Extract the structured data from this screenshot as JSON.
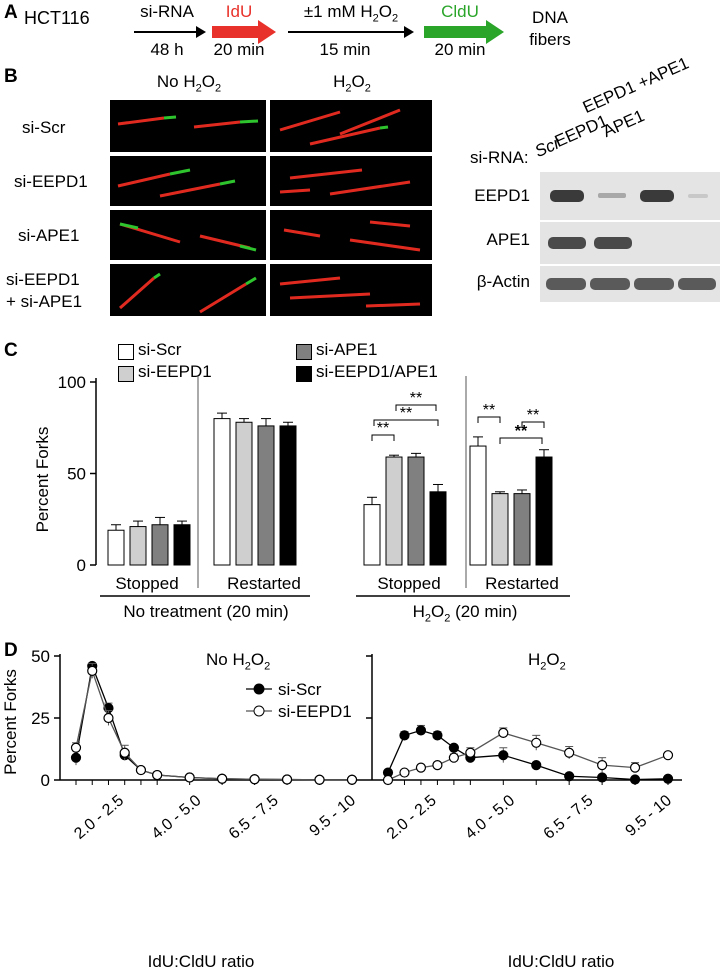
{
  "panel_a": {
    "label": "A",
    "cell_line": "HCT116",
    "steps": [
      {
        "above": "si-RNA",
        "below": "48 h",
        "color": "#000000"
      },
      {
        "above": "IdU",
        "below": "20 min",
        "color": "#e8312a"
      },
      {
        "above": "±1 mM H",
        "above_sub": "2",
        "above_tail": "O",
        "above_sub2": "2",
        "below": "15 min",
        "color": "#000000"
      },
      {
        "above": "CldU",
        "below": "20 min",
        "color": "#2aa52a"
      }
    ],
    "end_line1": "DNA",
    "end_line2": "fibers"
  },
  "panel_b": {
    "label": "B",
    "col_no": "No  H",
    "col_no_sub": "2",
    "col_no_tail": "O",
    "col_no_sub2": "2",
    "col_h": "H",
    "col_h_sub": "2",
    "col_h_tail": "O",
    "col_h_sub2": "2",
    "rows": [
      "si-Scr",
      "si-EEPD1",
      "si-APE1",
      "si-EEPD1",
      "+ si-APE1"
    ],
    "blot": {
      "sirna_label": "si-RNA:",
      "lanes": [
        "Scr",
        "EEPD1",
        "APE1",
        "EEPD1 +APE1"
      ],
      "bands": [
        "EEPD1",
        "APE1",
        "β-Actin"
      ]
    }
  },
  "panel_c": {
    "label": "C",
    "ylabel": "Percent Forks",
    "legend": [
      "si-Scr",
      "si-EEPD1",
      "si-APE1",
      "si-EEPD1/APE1"
    ],
    "group_labels": [
      "Stopped",
      "Restarted",
      "Stopped",
      "Restarted"
    ],
    "treatment_1": "No treatment (20 min)",
    "treatment_2_pre": "H",
    "treatment_2_sub": "2",
    "treatment_2_mid": "O",
    "treatment_2_sub2": "2",
    "treatment_2_tail": " (20 min)",
    "sig": "**"
  },
  "panel_d": {
    "label": "D",
    "ylabel": "Percent Forks",
    "xlabel": "IdU:CldU ratio",
    "title_left_pre": "No  H",
    "title_left_sub": "2",
    "title_left_mid": "O",
    "title_left_sub2": "2",
    "title_right_pre": "H",
    "title_right_sub": "2",
    "title_right_mid": "O",
    "title_right_sub2": "2",
    "legend": [
      "si-Scr",
      "si-EEPD1"
    ]
  },
  "chart_data": [
    {
      "type": "bar",
      "panel": "C",
      "ylabel": "Percent Forks",
      "ylim": [
        0,
        100
      ],
      "yticks": [
        0,
        50,
        100
      ],
      "categories": [
        "No treatment Stopped",
        "No treatment Restarted",
        "H2O2 Stopped",
        "H2O2 Restarted"
      ],
      "series": [
        {
          "name": "si-Scr",
          "color": "#ffffff",
          "values": [
            19,
            80,
            33,
            65
          ],
          "errors": [
            3,
            3,
            4,
            5
          ]
        },
        {
          "name": "si-EEPD1",
          "color": "#cfcfcf",
          "values": [
            21,
            78,
            59,
            39
          ],
          "errors": [
            3,
            2,
            1,
            1
          ]
        },
        {
          "name": "si-APE1",
          "color": "#808080",
          "values": [
            22,
            76,
            59,
            39
          ],
          "errors": [
            4,
            4,
            2,
            2
          ]
        },
        {
          "name": "si-EEPD1/APE1",
          "color": "#000000",
          "values": [
            22,
            76,
            40,
            59
          ],
          "errors": [
            2,
            2,
            4,
            4
          ]
        }
      ]
    },
    {
      "type": "line",
      "panel": "D",
      "title": "No H2O2",
      "ylabel": "Percent Forks",
      "xlabel": "IdU:CldU ratio",
      "ylim": [
        0,
        50
      ],
      "yticks": [
        0,
        25,
        50
      ],
      "tick_labels": [
        "2.0 - 2.5",
        "4.0 - 5.0",
        "6.5 - 7.5",
        "9.5 - 10"
      ],
      "series": [
        {
          "name": "si-Scr",
          "marker": "filled",
          "x": [
            0.5,
            1,
            1.5,
            2,
            2.5,
            3,
            4,
            5,
            6,
            7,
            8,
            9
          ],
          "y": [
            9,
            46,
            29,
            10,
            4,
            2,
            1,
            0.5,
            0.3,
            0.2,
            0.1,
            0.1
          ],
          "err": [
            3,
            1,
            2,
            2,
            1,
            1,
            0.5,
            0.3,
            0.2,
            0.1,
            0.1,
            0.1
          ]
        },
        {
          "name": "si-EEPD1",
          "marker": "open",
          "x": [
            0.5,
            1,
            1.5,
            2,
            2.5,
            3,
            4,
            5,
            6,
            7,
            8,
            9
          ],
          "y": [
            13,
            44,
            25,
            11,
            4,
            2,
            1,
            0.5,
            0.3,
            0.2,
            0.1,
            0.1
          ],
          "err": [
            2,
            3,
            3,
            3,
            1,
            1,
            0.5,
            0.3,
            0.2,
            0.1,
            0.1,
            0.1
          ]
        }
      ]
    },
    {
      "type": "line",
      "panel": "D",
      "title": "H2O2",
      "ylabel": "Percent Forks",
      "xlabel": "IdU:CldU ratio",
      "ylim": [
        0,
        50
      ],
      "yticks": [
        0,
        25,
        50
      ],
      "tick_labels": [
        "2.0 - 2.5",
        "4.0 - 5.0",
        "6.5 - 7.5",
        "9.5 - 10"
      ],
      "series": [
        {
          "name": "si-Scr",
          "marker": "filled",
          "x": [
            0.5,
            1,
            1.5,
            2,
            2.5,
            3,
            4,
            5,
            6,
            7,
            8,
            9
          ],
          "y": [
            3,
            18,
            20,
            18,
            13,
            9,
            10,
            6,
            1.5,
            1,
            0.2,
            0.5
          ],
          "err": [
            1,
            1.5,
            2,
            1.5,
            1,
            2,
            3,
            1,
            0.5,
            0.5,
            0.3,
            0.3
          ]
        },
        {
          "name": "si-EEPD1",
          "marker": "open",
          "x": [
            0.5,
            1,
            1.5,
            2,
            2.5,
            3,
            4,
            5,
            6,
            7,
            8,
            9
          ],
          "y": [
            0,
            3,
            5,
            6,
            9,
            11,
            19,
            15,
            11,
            6,
            5,
            10
          ],
          "err": [
            0.3,
            0.5,
            1,
            1,
            1.5,
            2,
            2,
            3,
            2.5,
            3,
            2,
            1
          ]
        }
      ]
    }
  ]
}
